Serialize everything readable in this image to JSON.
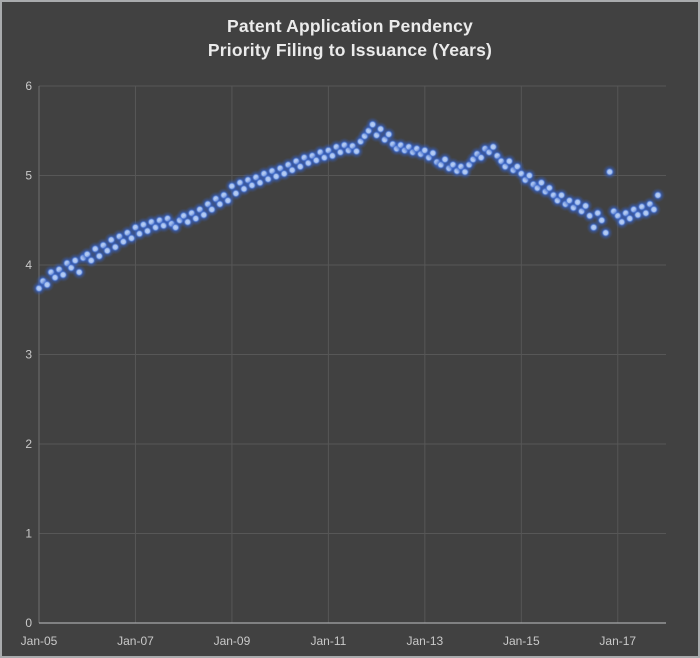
{
  "title": {
    "line1": "Patent Application Pendency",
    "line2": "Priority Filing to Issuance (Years)"
  },
  "colors": {
    "background": "#414141",
    "frame_border": "#a9abad",
    "gridline": "#575757",
    "left_axis_line": "#6e6e6e",
    "bottom_axis_line": "#a6a8aa",
    "tick_text": "#c9c9c9",
    "title_text": "#ebebeb",
    "point_center": "#aec7f2",
    "point_glow": "#3560c4"
  },
  "chart_data": {
    "type": "scatter",
    "title": "Patent Application Pendency",
    "subtitle": "Priority Filing to Issuance (Years)",
    "xlabel": "",
    "ylabel": "",
    "grid": true,
    "legend": "none",
    "xlim": [
      2005,
      2018
    ],
    "ylim": [
      0,
      6
    ],
    "x_tick_positions": [
      2005,
      2007,
      2009,
      2011,
      2013,
      2015,
      2017
    ],
    "x_tick_labels": [
      "Jan-05",
      "Jan-07",
      "Jan-09",
      "Jan-11",
      "Jan-13",
      "Jan-15",
      "Jan-17"
    ],
    "y_ticks": [
      0,
      1,
      2,
      3,
      4,
      5,
      6
    ],
    "series_name": "Pendency (years, monthly)",
    "points": [
      [
        2005.0,
        3.74
      ],
      [
        2005.083,
        3.82
      ],
      [
        2005.167,
        3.78
      ],
      [
        2005.25,
        3.92
      ],
      [
        2005.333,
        3.86
      ],
      [
        2005.417,
        3.95
      ],
      [
        2005.5,
        3.89
      ],
      [
        2005.583,
        4.02
      ],
      [
        2005.667,
        3.97
      ],
      [
        2005.75,
        4.05
      ],
      [
        2005.833,
        3.92
      ],
      [
        2005.917,
        4.08
      ],
      [
        2006.0,
        4.12
      ],
      [
        2006.083,
        4.05
      ],
      [
        2006.167,
        4.18
      ],
      [
        2006.25,
        4.1
      ],
      [
        2006.333,
        4.22
      ],
      [
        2006.417,
        4.16
      ],
      [
        2006.5,
        4.28
      ],
      [
        2006.583,
        4.2
      ],
      [
        2006.667,
        4.32
      ],
      [
        2006.75,
        4.26
      ],
      [
        2006.833,
        4.36
      ],
      [
        2006.917,
        4.3
      ],
      [
        2007.0,
        4.42
      ],
      [
        2007.083,
        4.35
      ],
      [
        2007.167,
        4.45
      ],
      [
        2007.25,
        4.38
      ],
      [
        2007.333,
        4.48
      ],
      [
        2007.417,
        4.42
      ],
      [
        2007.5,
        4.5
      ],
      [
        2007.583,
        4.44
      ],
      [
        2007.667,
        4.52
      ],
      [
        2007.75,
        4.46
      ],
      [
        2007.833,
        4.42
      ],
      [
        2007.917,
        4.5
      ],
      [
        2008.0,
        4.55
      ],
      [
        2008.083,
        4.48
      ],
      [
        2008.167,
        4.58
      ],
      [
        2008.25,
        4.52
      ],
      [
        2008.333,
        4.62
      ],
      [
        2008.417,
        4.56
      ],
      [
        2008.5,
        4.68
      ],
      [
        2008.583,
        4.62
      ],
      [
        2008.667,
        4.74
      ],
      [
        2008.75,
        4.68
      ],
      [
        2008.833,
        4.78
      ],
      [
        2008.917,
        4.72
      ],
      [
        2009.0,
        4.88
      ],
      [
        2009.083,
        4.8
      ],
      [
        2009.167,
        4.92
      ],
      [
        2009.25,
        4.85
      ],
      [
        2009.333,
        4.95
      ],
      [
        2009.417,
        4.89
      ],
      [
        2009.5,
        4.98
      ],
      [
        2009.583,
        4.92
      ],
      [
        2009.667,
        5.02
      ],
      [
        2009.75,
        4.96
      ],
      [
        2009.833,
        5.05
      ],
      [
        2009.917,
        4.99
      ],
      [
        2010.0,
        5.08
      ],
      [
        2010.083,
        5.02
      ],
      [
        2010.167,
        5.12
      ],
      [
        2010.25,
        5.06
      ],
      [
        2010.333,
        5.16
      ],
      [
        2010.417,
        5.1
      ],
      [
        2010.5,
        5.2
      ],
      [
        2010.583,
        5.14
      ],
      [
        2010.667,
        5.22
      ],
      [
        2010.75,
        5.17
      ],
      [
        2010.833,
        5.26
      ],
      [
        2010.917,
        5.2
      ],
      [
        2011.0,
        5.28
      ],
      [
        2011.083,
        5.22
      ],
      [
        2011.167,
        5.32
      ],
      [
        2011.25,
        5.26
      ],
      [
        2011.333,
        5.34
      ],
      [
        2011.417,
        5.28
      ],
      [
        2011.5,
        5.33
      ],
      [
        2011.583,
        5.27
      ],
      [
        2011.667,
        5.38
      ],
      [
        2011.75,
        5.44
      ],
      [
        2011.833,
        5.5
      ],
      [
        2011.917,
        5.57
      ],
      [
        2012.0,
        5.45
      ],
      [
        2012.083,
        5.52
      ],
      [
        2012.167,
        5.4
      ],
      [
        2012.25,
        5.46
      ],
      [
        2012.333,
        5.35
      ],
      [
        2012.417,
        5.3
      ],
      [
        2012.5,
        5.34
      ],
      [
        2012.583,
        5.28
      ],
      [
        2012.667,
        5.32
      ],
      [
        2012.75,
        5.26
      ],
      [
        2012.833,
        5.3
      ],
      [
        2012.917,
        5.24
      ],
      [
        2013.0,
        5.28
      ],
      [
        2013.083,
        5.2
      ],
      [
        2013.167,
        5.25
      ],
      [
        2013.25,
        5.15
      ],
      [
        2013.333,
        5.12
      ],
      [
        2013.417,
        5.18
      ],
      [
        2013.5,
        5.08
      ],
      [
        2013.583,
        5.12
      ],
      [
        2013.667,
        5.05
      ],
      [
        2013.75,
        5.1
      ],
      [
        2013.833,
        5.04
      ],
      [
        2013.917,
        5.12
      ],
      [
        2014.0,
        5.18
      ],
      [
        2014.083,
        5.24
      ],
      [
        2014.167,
        5.2
      ],
      [
        2014.25,
        5.3
      ],
      [
        2014.333,
        5.26
      ],
      [
        2014.417,
        5.32
      ],
      [
        2014.5,
        5.22
      ],
      [
        2014.583,
        5.16
      ],
      [
        2014.667,
        5.1
      ],
      [
        2014.75,
        5.16
      ],
      [
        2014.833,
        5.06
      ],
      [
        2014.917,
        5.1
      ],
      [
        2015.0,
        5.02
      ],
      [
        2015.083,
        4.95
      ],
      [
        2015.167,
        5.0
      ],
      [
        2015.25,
        4.9
      ],
      [
        2015.333,
        4.86
      ],
      [
        2015.417,
        4.92
      ],
      [
        2015.5,
        4.82
      ],
      [
        2015.583,
        4.86
      ],
      [
        2015.667,
        4.78
      ],
      [
        2015.75,
        4.72
      ],
      [
        2015.833,
        4.78
      ],
      [
        2015.917,
        4.68
      ],
      [
        2016.0,
        4.72
      ],
      [
        2016.083,
        4.64
      ],
      [
        2016.167,
        4.7
      ],
      [
        2016.25,
        4.6
      ],
      [
        2016.333,
        4.66
      ],
      [
        2016.417,
        4.55
      ],
      [
        2016.5,
        4.42
      ],
      [
        2016.583,
        4.58
      ],
      [
        2016.667,
        4.5
      ],
      [
        2016.75,
        4.36
      ],
      [
        2016.833,
        5.04
      ],
      [
        2016.917,
        4.6
      ],
      [
        2017.0,
        4.55
      ],
      [
        2017.083,
        4.48
      ],
      [
        2017.167,
        4.58
      ],
      [
        2017.25,
        4.52
      ],
      [
        2017.333,
        4.62
      ],
      [
        2017.417,
        4.56
      ],
      [
        2017.5,
        4.65
      ],
      [
        2017.583,
        4.58
      ],
      [
        2017.667,
        4.68
      ],
      [
        2017.75,
        4.62
      ],
      [
        2017.833,
        4.78
      ]
    ]
  }
}
